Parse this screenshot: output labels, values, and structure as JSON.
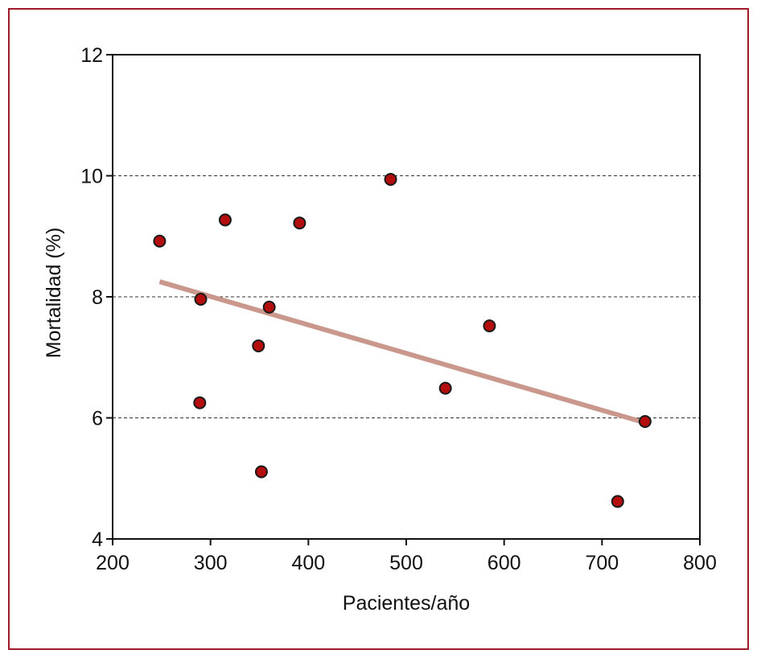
{
  "chart_data": {
    "type": "scatter",
    "xlabel": "Pacientes/año",
    "ylabel": "Mortalidad (%)",
    "xlim": [
      200,
      800
    ],
    "ylim": [
      4,
      12
    ],
    "xticks": [
      200,
      300,
      400,
      500,
      600,
      700,
      800
    ],
    "yticks": [
      4,
      6,
      8,
      10,
      12
    ],
    "gridlines_y": [
      6,
      8,
      10
    ],
    "grid": "horizontal dashed at 6, 8, 10",
    "points": [
      {
        "x": 248,
        "y": 8.92
      },
      {
        "x": 315,
        "y": 9.27
      },
      {
        "x": 391,
        "y": 9.22
      },
      {
        "x": 484,
        "y": 9.94
      },
      {
        "x": 290,
        "y": 7.96
      },
      {
        "x": 360,
        "y": 7.83
      },
      {
        "x": 349,
        "y": 7.19
      },
      {
        "x": 289,
        "y": 6.25
      },
      {
        "x": 352,
        "y": 5.11
      },
      {
        "x": 540,
        "y": 6.49
      },
      {
        "x": 585,
        "y": 7.52
      },
      {
        "x": 744,
        "y": 5.94
      },
      {
        "x": 716,
        "y": 4.62
      }
    ],
    "trendline": {
      "x": [
        248,
        744
      ],
      "y": [
        8.25,
        5.92
      ]
    },
    "colors": {
      "point_fill": "#b30d0d",
      "point_stroke": "#1a1a1a",
      "trendline": "#c9978c",
      "frame": "#a01a2a",
      "axis": "#111111",
      "grid": "#333333"
    }
  }
}
